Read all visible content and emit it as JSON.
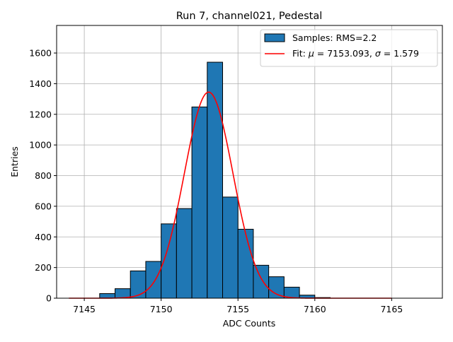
{
  "chart_data": {
    "type": "bar",
    "title": "Run 7, channel021, Pedestal",
    "xlabel": "ADC Counts",
    "ylabel": "Entries",
    "xlim": [
      7143.2,
      7168.3
    ],
    "ylim": [
      0,
      1780
    ],
    "x_ticks": [
      7145,
      7150,
      7155,
      7160,
      7165
    ],
    "y_ticks": [
      0,
      200,
      400,
      600,
      800,
      1000,
      1200,
      1400,
      1600
    ],
    "grid": true,
    "legend_position": "top-right",
    "bin_width": 1,
    "bins": [
      {
        "x": 7146,
        "value": 30
      },
      {
        "x": 7147,
        "value": 62
      },
      {
        "x": 7148,
        "value": 178
      },
      {
        "x": 7149,
        "value": 240
      },
      {
        "x": 7150,
        "value": 485
      },
      {
        "x": 7151,
        "value": 585
      },
      {
        "x": 7152,
        "value": 1248
      },
      {
        "x": 7153,
        "value": 1540
      },
      {
        "x": 7154,
        "value": 660
      },
      {
        "x": 7155,
        "value": 450
      },
      {
        "x": 7156,
        "value": 215
      },
      {
        "x": 7157,
        "value": 140
      },
      {
        "x": 7158,
        "value": 72
      },
      {
        "x": 7159,
        "value": 20
      },
      {
        "x": 7160,
        "value": 4
      }
    ],
    "fit": {
      "mu": 7153.093,
      "sigma": 1.579,
      "amplitude": 1345,
      "x_range": [
        7144,
        7165
      ]
    },
    "legend": {
      "samples_label": "Samples: RMS=2.2",
      "fit_label_prefix": "Fit: ",
      "fit_label_mu": "μ",
      "fit_label_mid": " = 7153.093, ",
      "fit_label_sigma": "σ",
      "fit_label_end": " = 1.579"
    },
    "colors": {
      "bar": "#1f77b4",
      "bar_edge": "#000000",
      "fit": "#ff0000",
      "grid": "#b0b0b0"
    }
  }
}
